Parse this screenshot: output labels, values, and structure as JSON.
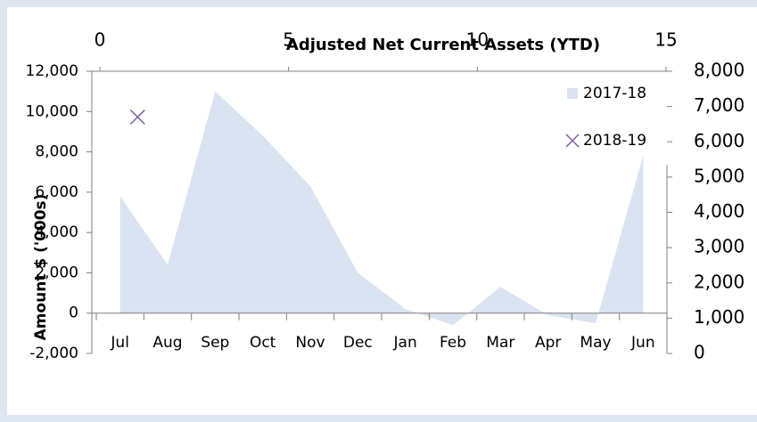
{
  "chart_data": {
    "type": "area",
    "title": "Adjusted Net Current Assets (YTD)",
    "y_label": "Amount $ ('000s)",
    "categories": [
      "Jul",
      "Aug",
      "Sep",
      "Oct",
      "Nov",
      "Dec",
      "Jan",
      "Feb",
      "Mar",
      "Apr",
      "May",
      "Jun"
    ],
    "series": [
      {
        "name": "2017-18",
        "color": "#d9e3f1",
        "values": [
          5800,
          2400,
          11000,
          8800,
          6300,
          2000,
          200,
          -600,
          1300,
          -100,
          -500,
          7800
        ]
      },
      {
        "name": "2018-19",
        "color": "#7b5ea7",
        "type": "scatter",
        "axis": "y2",
        "x": [
          1
        ],
        "values": [
          6700
        ]
      }
    ],
    "ylim": [
      -2000,
      12000
    ],
    "yticks": [
      {
        "value": -2000,
        "label": "-2,000"
      },
      0,
      {
        "value": 2000,
        "label": "2,000"
      },
      {
        "value": 4000,
        "label": "4,000"
      },
      {
        "value": 6000,
        "label": "6,000"
      },
      {
        "value": 8000,
        "label": "8,000"
      },
      {
        "value": 10000,
        "label": "10,000"
      },
      {
        "value": 12000,
        "label": "12,000"
      }
    ],
    "y2lim": [
      0,
      8000
    ],
    "y2ticks": [
      0,
      {
        "value": 1000,
        "label": "1,000"
      },
      {
        "value": 2000,
        "label": "2,000"
      },
      {
        "value": 3000,
        "label": "3,000"
      },
      {
        "value": 4000,
        "label": "4,000"
      },
      {
        "value": 5000,
        "label": "5,000"
      },
      {
        "value": 6000,
        "label": "6,000"
      },
      {
        "value": 7000,
        "label": "7,000"
      },
      {
        "value": 8000,
        "label": "8,000"
      }
    ],
    "x2lim": [
      0,
      15
    ],
    "x2ticks": [
      0,
      5,
      10,
      15
    ],
    "legend": "top-right"
  }
}
